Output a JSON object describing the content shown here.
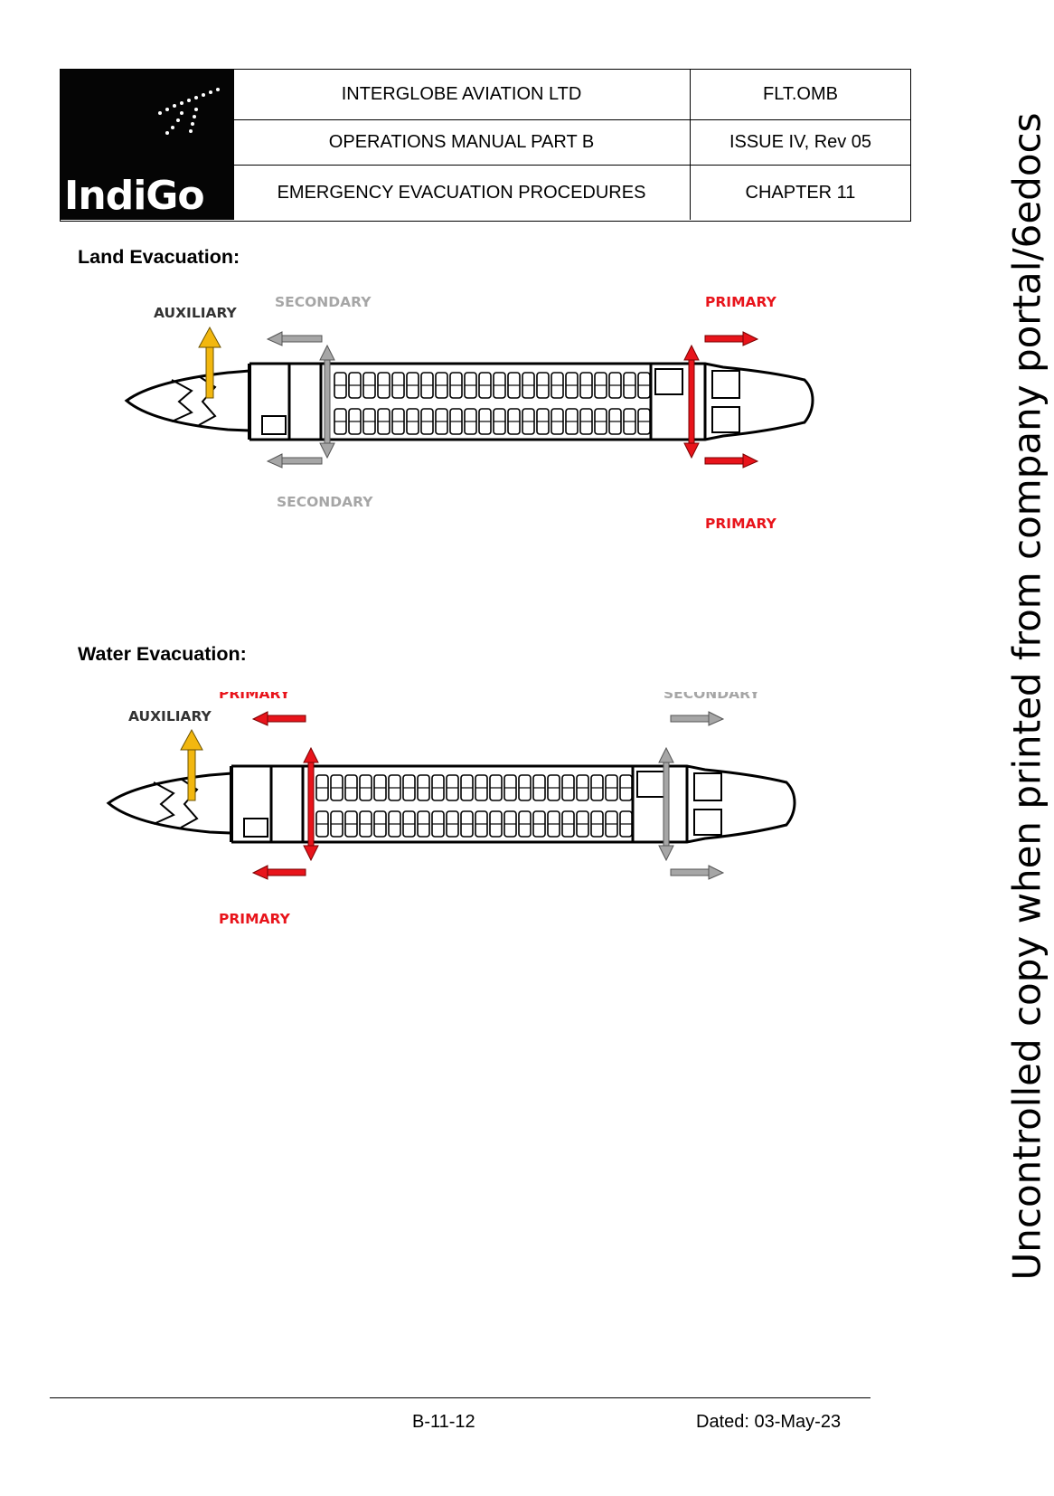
{
  "header": {
    "logo_text": "IndiGo",
    "rows": [
      {
        "c1": "INTERGLOBE AVIATION LTD",
        "c2": "FLT.OMB"
      },
      {
        "c1": "OPERATIONS MANUAL PART B",
        "c2": "ISSUE IV, Rev 05"
      },
      {
        "c1": "EMERGENCY EVACUATION PROCEDURES",
        "c2": "CHAPTER  11"
      }
    ]
  },
  "land": {
    "title": "Land Evacuation:",
    "auxiliary": "AUXILIARY",
    "secondary_top": "SECONDARY",
    "secondary_bottom": "SECONDARY",
    "primary_top": "PRIMARY",
    "primary_bottom": "PRIMARY"
  },
  "water": {
    "title": "Water Evacuation:",
    "auxiliary": "AUXILIARY",
    "primary_top": "PRIMARY",
    "primary_bottom": "PRIMARY",
    "secondary_top": "SECONDARY"
  },
  "colors": {
    "primary": "#e8141b",
    "secondary": "#a6a6a6",
    "auxiliary": "#f2b70f"
  },
  "footer": {
    "page": "B-11-12",
    "dated": "Dated: 03-May-23"
  },
  "watermark": "Uncontrolled copy when printed from company portal/6edocs"
}
